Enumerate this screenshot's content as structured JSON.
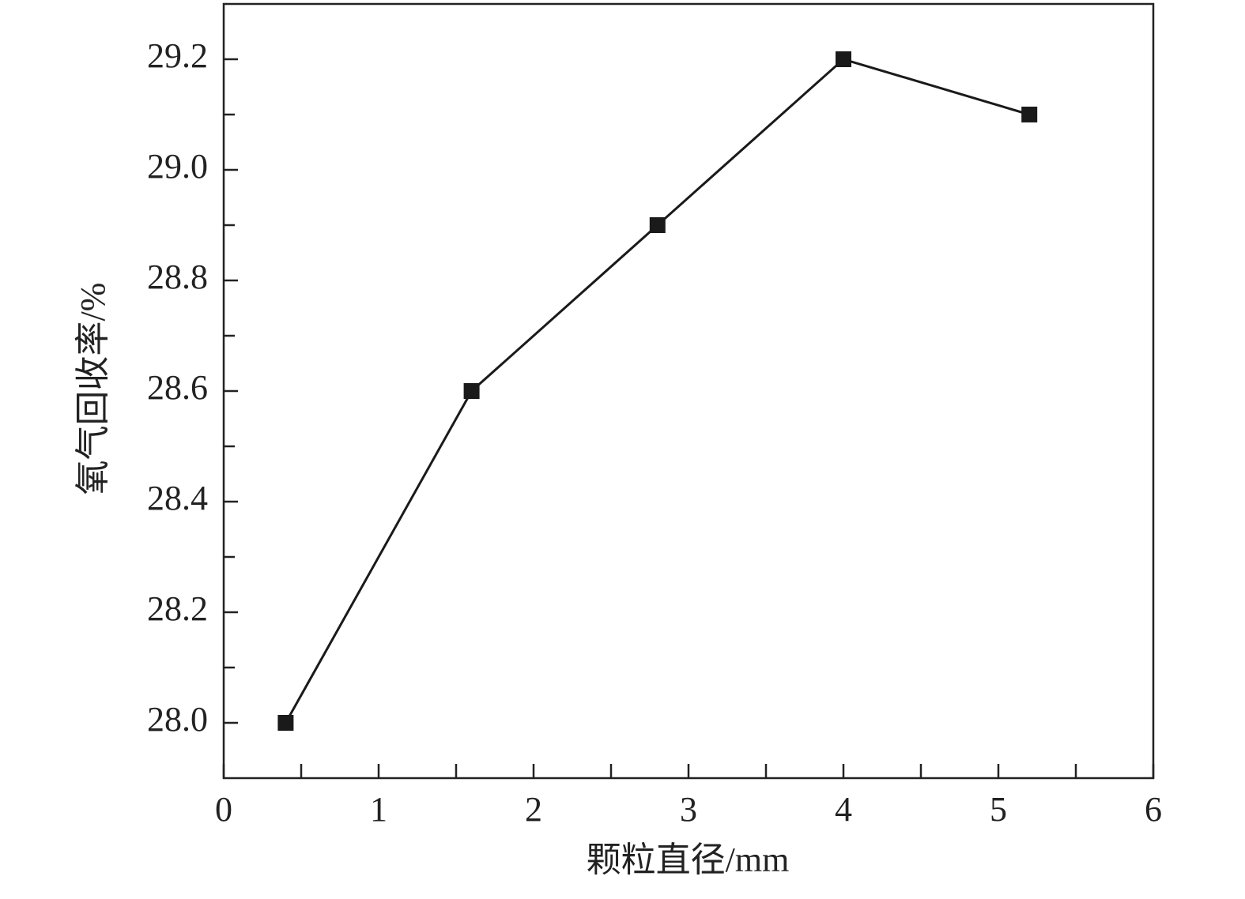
{
  "chart_data": {
    "type": "line",
    "x_label": "颗粒直径/mm",
    "y_label": "氧气回收率/%",
    "x": [
      0.4,
      1.6,
      2.8,
      4.0,
      5.2
    ],
    "series": [
      {
        "color": "#1a1a1a",
        "values": [
          28.0,
          28.6,
          28.9,
          29.2,
          29.1
        ]
      }
    ],
    "xlim": [
      0,
      6
    ],
    "xticks": [
      0,
      1,
      2,
      3,
      4,
      5,
      6
    ],
    "xminorticks": [
      0.5,
      1.5,
      2.5,
      3.5,
      4.5,
      5.5
    ],
    "ylim": [
      27.9,
      29.3
    ],
    "yticks": [
      {
        "value": 28,
        "label": "28.0"
      },
      28.2,
      28.4,
      28.6,
      28.8,
      {
        "value": 29,
        "label": "29.0"
      },
      29.2
    ],
    "yminorticks": [
      28.1,
      28.3,
      28.5,
      28.7,
      28.9,
      29.1
    ],
    "grid": false
  }
}
